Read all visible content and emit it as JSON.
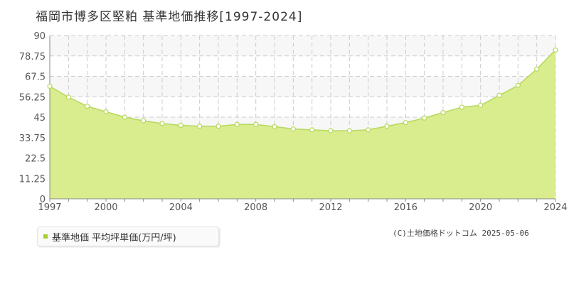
{
  "title": "福岡市博多区堅粕 基準地価推移[1997-2024]",
  "legend": {
    "label": "基準地価 平均坪単価(万円/坪)"
  },
  "copyright": "(C)土地価格ドットコム 2025-05-06",
  "colors": {
    "fill": "#d9ec8e",
    "line": "#b5d95a",
    "marker_fill": "#ffffff",
    "swatch": "#a6cf2e",
    "band": "#f7f7f7",
    "grid": "#cccccc"
  },
  "chart_data": {
    "type": "area",
    "title": "福岡市博多区堅粕 基準地価推移[1997-2024]",
    "xlabel": "",
    "ylabel": "",
    "x": [
      1997,
      1998,
      1999,
      2000,
      2001,
      2002,
      2003,
      2004,
      2005,
      2006,
      2007,
      2008,
      2009,
      2010,
      2011,
      2012,
      2013,
      2014,
      2015,
      2016,
      2017,
      2018,
      2019,
      2020,
      2021,
      2022,
      2023,
      2024
    ],
    "series": [
      {
        "name": "基準地価 平均坪単価(万円/坪)",
        "values": [
          62.0,
          56.0,
          51.0,
          48.0,
          45.0,
          43.0,
          41.5,
          40.5,
          40.0,
          40.0,
          41.0,
          41.0,
          39.8,
          38.5,
          38.0,
          37.5,
          37.5,
          38.0,
          40.0,
          42.0,
          44.5,
          47.5,
          50.5,
          51.5,
          57.0,
          62.5,
          71.5,
          82.0
        ]
      }
    ],
    "xlim": [
      1997,
      2024
    ],
    "ylim": [
      0,
      90
    ],
    "yticks": [
      0,
      11.25,
      22.5,
      33.75,
      45,
      56.25,
      67.5,
      78.75,
      90
    ],
    "ytick_labels": [
      "0",
      "11.25",
      "22.5",
      "33.75",
      "45",
      "56.25",
      "67.5",
      "78.75",
      "90"
    ],
    "xtick_labels": [
      {
        "x": 1997,
        "label": "1997"
      },
      {
        "x": 2000,
        "label": "2000"
      },
      {
        "x": 2004,
        "label": "2004"
      },
      {
        "x": 2008,
        "label": "2008"
      },
      {
        "x": 2012,
        "label": "2012"
      },
      {
        "x": 2016,
        "label": "2016"
      },
      {
        "x": 2020,
        "label": "2020"
      },
      {
        "x": 2024,
        "label": "2024"
      }
    ],
    "grid": true,
    "legend_position": "bottom-left"
  }
}
